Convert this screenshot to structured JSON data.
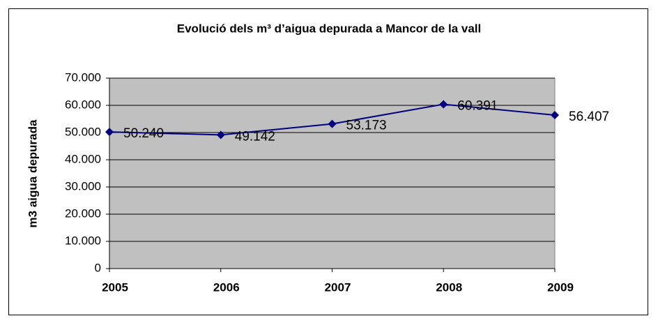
{
  "chart_data": {
    "type": "line",
    "title": "Evolució dels m³ d’aigua depurada a Mancor de la vall",
    "ylabel": "m3 aigua depurada",
    "categories": [
      "2005",
      "2006",
      "2007",
      "2008",
      "2009"
    ],
    "series": [
      {
        "name": "m3 aigua depurada",
        "color": "#000080",
        "values": [
          50240,
          49142,
          53173,
          60391,
          56407
        ],
        "value_labels": [
          "50.240",
          "49.142",
          "53.173",
          "60.391",
          "56.407"
        ]
      }
    ],
    "ylim": [
      0,
      70000
    ],
    "yticks": [
      0,
      {
        "value": 10000,
        "label": "10.000"
      },
      {
        "value": 20000,
        "label": "20.000"
      },
      {
        "value": 30000,
        "label": "30.000"
      },
      {
        "value": 40000,
        "label": "40.000"
      },
      {
        "value": 50000,
        "label": "50.000"
      },
      {
        "value": 60000,
        "label": "60.000"
      },
      {
        "value": 70000,
        "label": "70.000"
      }
    ],
    "grid": true,
    "plot_background": "#c0c0c0"
  }
}
